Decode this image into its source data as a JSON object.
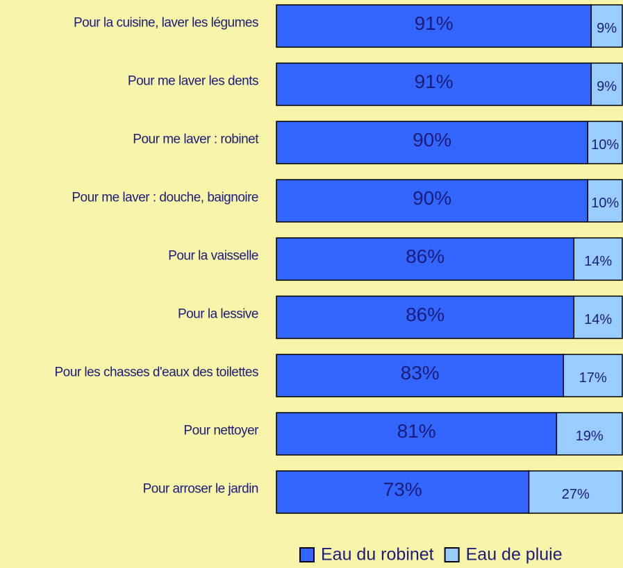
{
  "chart_data": {
    "type": "bar",
    "orientation": "horizontal",
    "stacked": true,
    "categories": [
      "Pour la cuisine, laver les légumes",
      "Pour me laver les dents",
      "Pour me laver : robinet",
      "Pour me laver : douche, baignoire",
      "Pour la vaisselle",
      "Pour la lessive",
      "Pour les chasses d'eaux des toilettes",
      "Pour nettoyer",
      "Pour arroser le jardin"
    ],
    "series": [
      {
        "name": "Eau du robinet",
        "color": "#3366ff",
        "values": [
          91,
          91,
          90,
          90,
          86,
          86,
          83,
          81,
          73
        ],
        "value_labels": [
          "91%",
          "91%",
          "90%",
          "90%",
          "86%",
          "86%",
          "83%",
          "81%",
          "73%"
        ]
      },
      {
        "name": "Eau de pluie",
        "color": "#99ccff",
        "values": [
          9,
          9,
          10,
          10,
          14,
          14,
          17,
          19,
          27
        ],
        "value_labels": [
          "9%",
          "9%",
          "10%",
          "10%",
          "14%",
          "14%",
          "17%",
          "19%",
          "27%"
        ]
      }
    ],
    "xlim": [
      0,
      100
    ],
    "legend": "bottom"
  }
}
